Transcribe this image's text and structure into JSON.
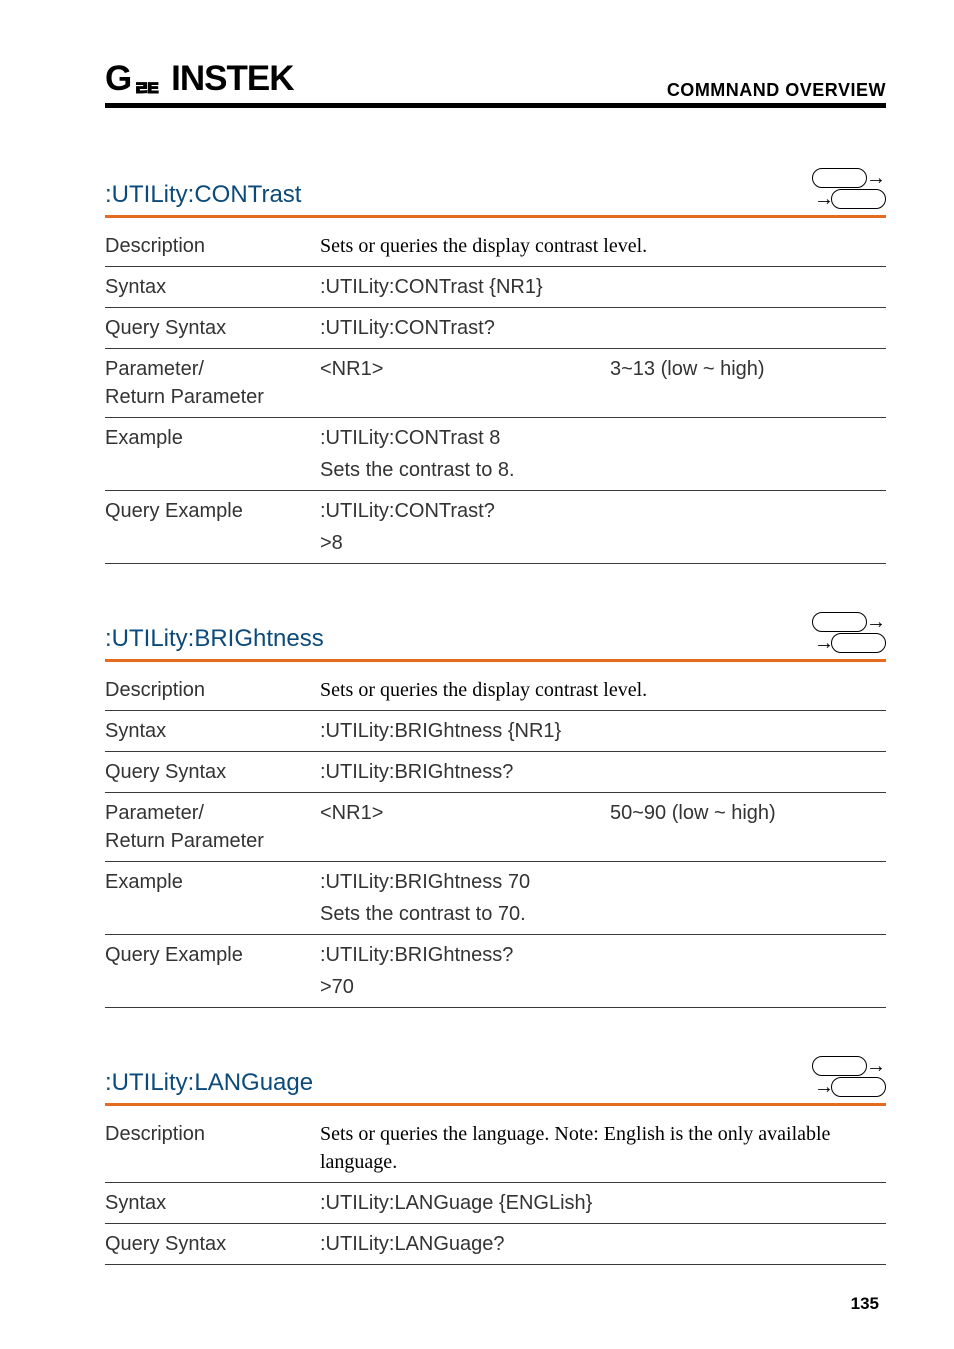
{
  "header": {
    "logo": "Gᆴ INSTEK",
    "title": "COMMNAND OVERVIEW"
  },
  "sections": [
    {
      "title": ":UTILity:CONTrast",
      "rows": [
        {
          "label": "Description",
          "content": "Sets or queries the display contrast level.",
          "serif": true,
          "border": true
        },
        {
          "label": "Syntax",
          "content": ":UTILity:CONTrast {NR1}",
          "border": true
        },
        {
          "label": "Query Syntax",
          "content": ":UTILity:CONTrast?",
          "border": true
        },
        {
          "label": "Parameter/\nReturn Parameter",
          "param": "<NR1>",
          "range": "3~13 (low ~ high)",
          "border": true
        },
        {
          "label": "Example",
          "content": ":UTILity:CONTrast 8",
          "content2": "Sets the contrast to 8.",
          "border": true
        },
        {
          "label": "Query Example",
          "content": ":UTILity:CONTrast?",
          "content2": ">8",
          "border": true
        }
      ]
    },
    {
      "title": ":UTILity:BRIGhtness",
      "rows": [
        {
          "label": "Description",
          "content": "Sets or queries the display contrast level.",
          "serif": true,
          "border": true
        },
        {
          "label": "Syntax",
          "content": ":UTILity:BRIGhtness {NR1}",
          "border": true
        },
        {
          "label": "Query Syntax",
          "content": ":UTILity:BRIGhtness?",
          "border": true
        },
        {
          "label": "Parameter/\nReturn Parameter",
          "param": "<NR1>",
          "range": "50~90 (low ~ high)",
          "border": true
        },
        {
          "label": "Example",
          "content": ":UTILity:BRIGhtness 70",
          "content2": "Sets the contrast to 70.",
          "border": true
        },
        {
          "label": "Query Example",
          "content": ":UTILity:BRIGhtness?",
          "content2": ">70",
          "border": true
        }
      ]
    },
    {
      "title": ":UTILity:LANGuage",
      "rows": [
        {
          "label": "Description",
          "content": "Sets or queries the language. Note: English is the only available language.",
          "serif": true,
          "border": true
        },
        {
          "label": "Syntax",
          "content": ":UTILity:LANGuage {ENGLish}",
          "border": true
        },
        {
          "label": "Query Syntax",
          "content": ":UTILity:LANGuage?",
          "border": true
        }
      ]
    }
  ],
  "page": "135"
}
